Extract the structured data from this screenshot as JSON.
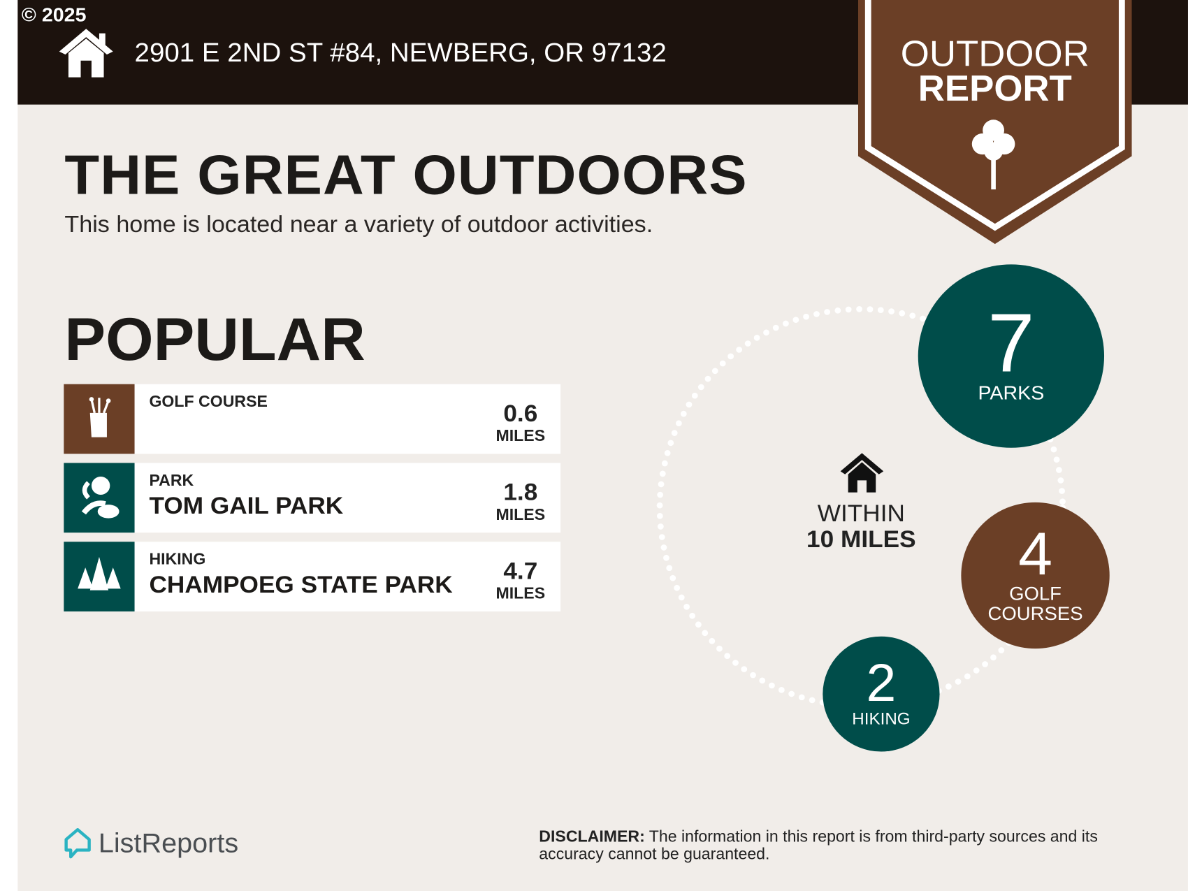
{
  "header": {
    "copyright": "© 2025",
    "address": "2901 E 2ND ST #84, NEWBERG, OR 97132"
  },
  "badge": {
    "line1": "OUTDOOR",
    "line2": "REPORT"
  },
  "title": "THE GREAT OUTDOORS",
  "subtitle": "This home is located near a variety of outdoor activities.",
  "popular": {
    "heading": "POPULAR",
    "items": [
      {
        "category": "GOLF COURSE",
        "name": "",
        "distance": "0.6",
        "unit": "MILES",
        "icon": "golf-bag-icon",
        "color": "#6b3f26"
      },
      {
        "category": "PARK",
        "name": "TOM GAIL PARK",
        "distance": "1.8",
        "unit": "MILES",
        "icon": "park-icon",
        "color": "#004d4a"
      },
      {
        "category": "HIKING",
        "name": "CHAMPOEG STATE PARK",
        "distance": "4.7",
        "unit": "MILES",
        "icon": "pine-trees-icon",
        "color": "#004d4a"
      }
    ]
  },
  "summary": {
    "within_line1": "WITHIN",
    "within_line2": "10 MILES",
    "parks": {
      "count": "7",
      "label": "PARKS"
    },
    "golf": {
      "count": "4",
      "label1": "GOLF",
      "label2": "COURSES"
    },
    "hiking": {
      "count": "2",
      "label": "HIKING"
    }
  },
  "footer": {
    "brand": "ListReports",
    "disclaimer_label": "DISCLAIMER:",
    "disclaimer": " The information in this report is from third-party sources and its accuracy cannot be guaranteed."
  },
  "colors": {
    "dark": "#1c120d",
    "brown": "#6b3f26",
    "teal": "#004d4a",
    "bg": "#f1ede9"
  }
}
